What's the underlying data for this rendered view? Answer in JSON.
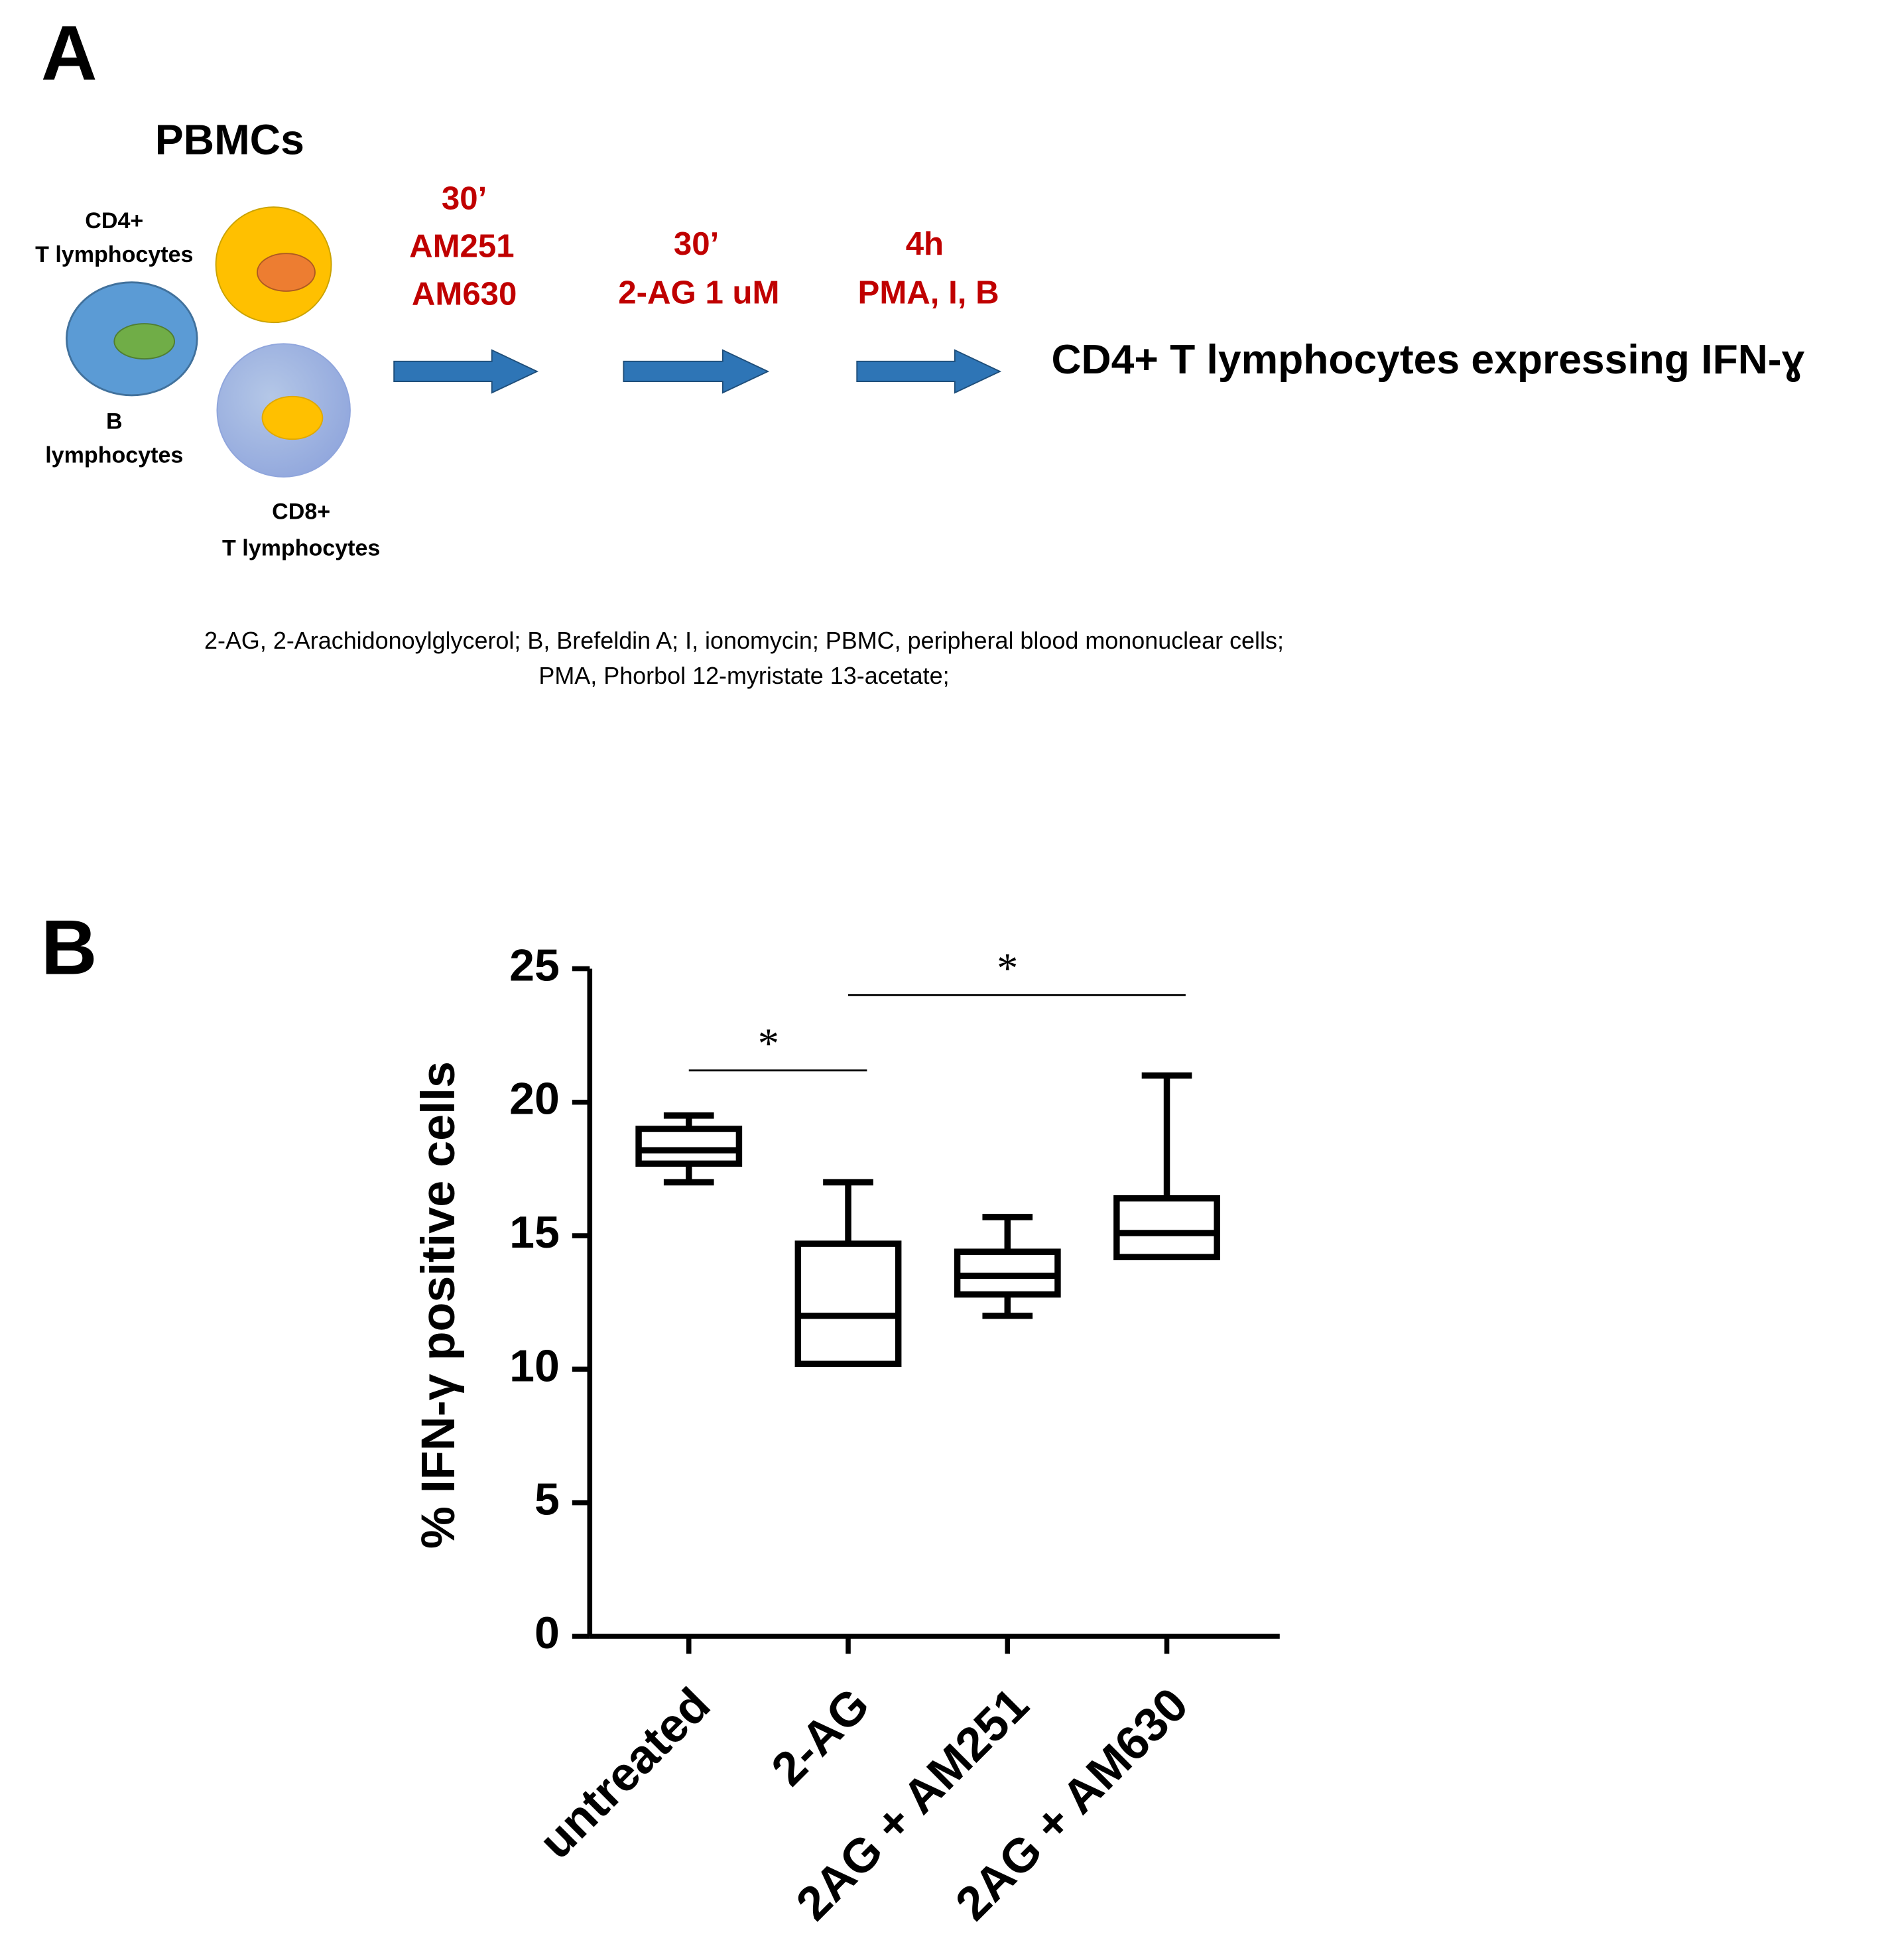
{
  "panel_a": {
    "label": "A",
    "title": "PBMCs",
    "cells": {
      "cd4": [
        "CD4+",
        "T lymphocytes"
      ],
      "b": [
        "B",
        "lymphocytes"
      ],
      "cd8": [
        "CD8+",
        "T lymphocytes"
      ]
    },
    "steps": [
      [
        "30’",
        "AM251",
        "AM630"
      ],
      [
        "30’",
        "2-AG 1 uM"
      ],
      [
        "4h",
        "PMA, I, B"
      ]
    ],
    "outcome": "CD4+ T lymphocytes expressing IFN-ɣ",
    "footnote": [
      "2-AG, 2-Arachidonoylglycerol; B, Brefeldin A; I, ionomycin; PBMC, peripheral blood mononuclear cells;",
      "PMA, Phorbol 12-myristate 13-acetate;"
    ]
  },
  "panel_b": {
    "label": "B"
  },
  "chart_data": {
    "type": "box",
    "y_label": "% IFN-γ positive cells",
    "categories": [
      "untreated",
      "2-AG",
      "2AG + AM251",
      "2AG + AM630"
    ],
    "boxes": [
      {
        "min": 17,
        "q1": 17.7,
        "median": 18.2,
        "q3": 19,
        "max": 19.5
      },
      {
        "min": 10.2,
        "q1": 10.2,
        "median": 12,
        "q3": 14.7,
        "max": 17
      },
      {
        "min": 12,
        "q1": 12.8,
        "median": 13.5,
        "q3": 14.4,
        "max": 15.7
      },
      {
        "min": 14.2,
        "q1": 14.2,
        "median": 15.1,
        "q3": 16.4,
        "max": 21
      }
    ],
    "color": "#000000",
    "ylim": [
      0,
      25
    ],
    "yticks": [
      0,
      5,
      10,
      15,
      20,
      25
    ],
    "significance": [
      {
        "label": "*",
        "between": [
          "untreated",
          "2-AG"
        ]
      },
      {
        "label": "*",
        "between": [
          "2-AG",
          "2AG + AM630"
        ]
      }
    ]
  }
}
